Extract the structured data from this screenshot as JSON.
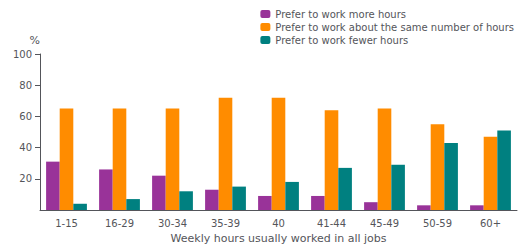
{
  "chart_data": {
    "type": "bar",
    "categories": [
      "1-15",
      "16-29",
      "30-34",
      "35-39",
      "40",
      "41-44",
      "45-49",
      "50-59",
      "60+"
    ],
    "series": [
      {
        "name": "Prefer to work more hours",
        "color": "#993399",
        "values": [
          31,
          26,
          22,
          13,
          9,
          9,
          5,
          3,
          3
        ]
      },
      {
        "name": "Prefer to work about the same number of hours",
        "color": "#FF8C00",
        "values": [
          65,
          65,
          65,
          72,
          72,
          64,
          65,
          55,
          47
        ]
      },
      {
        "name": "Prefer to work fewer hours",
        "color": "#008080",
        "values": [
          4,
          7,
          12,
          15,
          18,
          27,
          29,
          43,
          51
        ]
      }
    ],
    "xlabel": "Weekly hours usually worked in all jobs",
    "ylabel": "%",
    "ylim": [
      0,
      100
    ],
    "yticks": [
      20,
      40,
      60,
      80,
      100
    ],
    "grid": false,
    "legend": "upper right"
  }
}
